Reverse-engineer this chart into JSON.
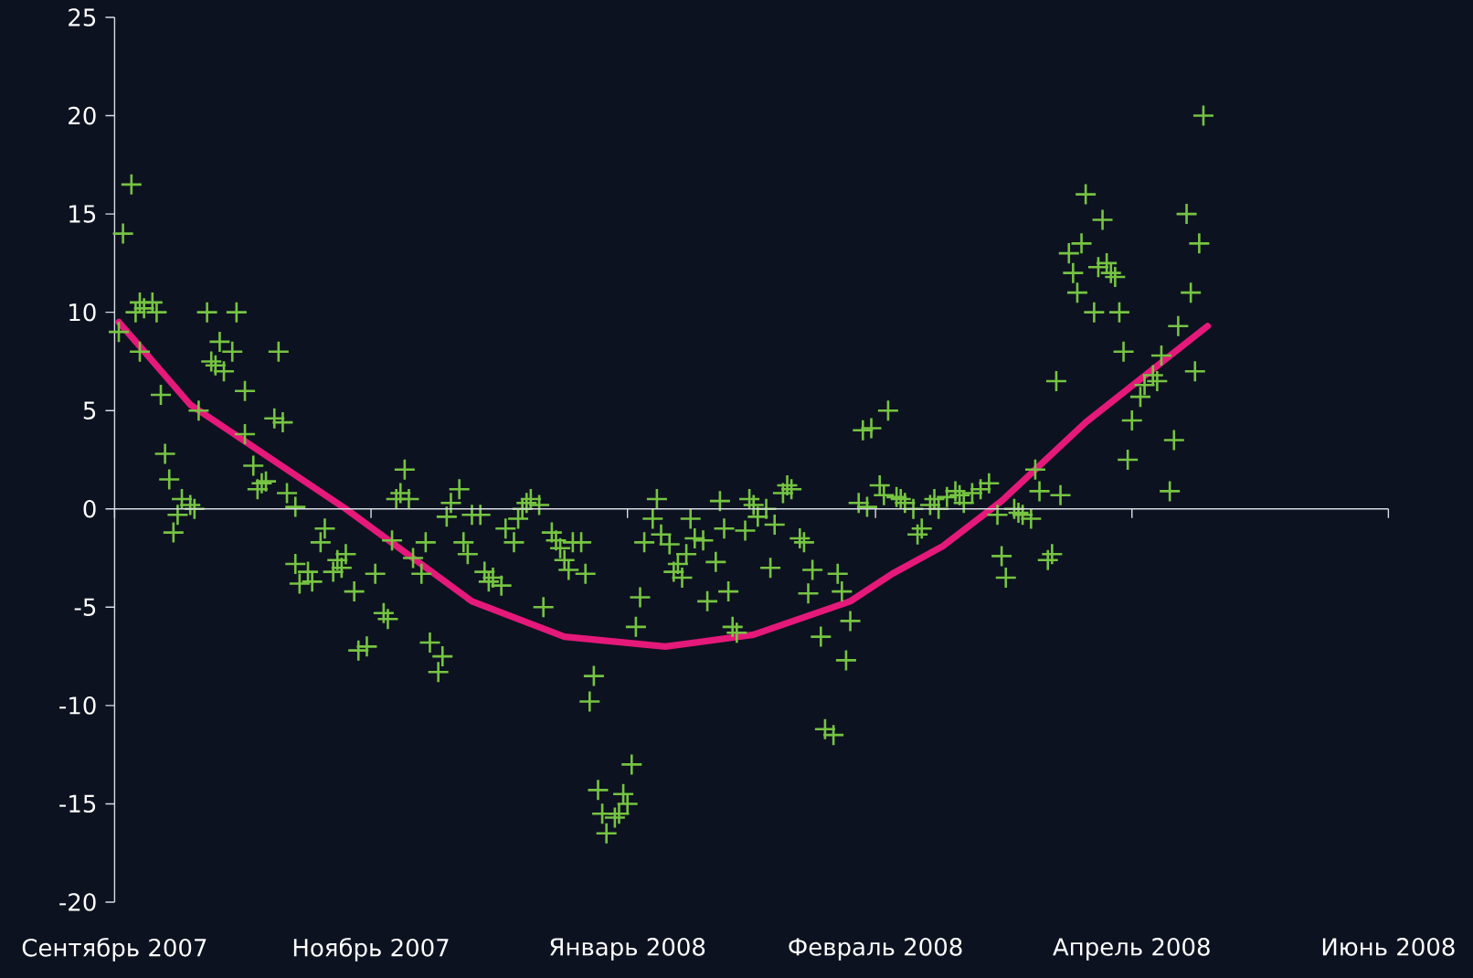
{
  "chart_data": {
    "type": "scatter",
    "marker": "cross",
    "xlim": [
      "2007-09-01",
      "2008-06-30"
    ],
    "ylim": [
      -20,
      25
    ],
    "xticks": [
      {
        "value": "2007-09-01",
        "label": "Сентябрь 2007"
      },
      {
        "value": "2007-11-01",
        "label": "Ноябрь 2007"
      },
      {
        "value": "2008-01-01",
        "label": "Январь 2008"
      },
      {
        "value": "2008-02-29",
        "label": "Февраль 2008"
      },
      {
        "value": "2008-04-30",
        "label": "Апрель 2008"
      },
      {
        "value": "2008-06-30",
        "label": "Июнь 2008"
      }
    ],
    "yticks": [
      -20,
      -15,
      -10,
      -5,
      0,
      5,
      10,
      15,
      20,
      25
    ],
    "series": [
      {
        "color": "#76c442",
        "x": [
          "2007-09-02",
          "2007-09-03",
          "2007-09-05",
          "2007-09-06",
          "2007-09-07",
          "2007-09-07",
          "2007-09-08",
          "2007-09-10",
          "2007-09-11",
          "2007-09-12",
          "2007-09-13",
          "2007-09-14",
          "2007-09-15",
          "2007-09-16",
          "2007-09-17",
          "2007-09-19",
          "2007-09-20",
          "2007-09-21",
          "2007-09-23",
          "2007-09-24",
          "2007-09-25",
          "2007-09-26",
          "2007-09-27",
          "2007-09-29",
          "2007-09-30",
          "2007-10-02",
          "2007-10-02",
          "2007-10-04",
          "2007-10-05",
          "2007-10-06",
          "2007-10-07",
          "2007-10-09",
          "2007-10-10",
          "2007-10-11",
          "2007-10-12",
          "2007-10-14",
          "2007-10-14",
          "2007-10-15",
          "2007-10-17",
          "2007-10-18",
          "2007-10-20",
          "2007-10-21",
          "2007-10-23",
          "2007-10-24",
          "2007-10-25",
          "2007-10-26",
          "2007-10-28",
          "2007-10-29",
          "2007-10-31",
          "2007-11-02",
          "2007-11-04",
          "2007-11-05",
          "2007-11-06",
          "2007-11-07",
          "2007-11-08",
          "2007-11-09",
          "2007-11-10",
          "2007-11-11",
          "2007-11-13",
          "2007-11-14",
          "2007-11-15",
          "2007-11-17",
          "2007-11-18",
          "2007-11-19",
          "2007-11-20",
          "2007-11-22",
          "2007-11-23",
          "2007-11-24",
          "2007-11-25",
          "2007-11-27",
          "2007-11-28",
          "2007-11-29",
          "2007-11-30",
          "2007-12-02",
          "2007-12-03",
          "2007-12-05",
          "2007-12-06",
          "2007-12-07",
          "2007-12-08",
          "2007-12-09",
          "2007-12-11",
          "2007-12-12",
          "2007-12-14",
          "2007-12-15",
          "2007-12-16",
          "2007-12-17",
          "2007-12-18",
          "2007-12-19",
          "2007-12-21",
          "2007-12-22",
          "2007-12-23",
          "2007-12-24",
          "2007-12-25",
          "2007-12-26",
          "2007-12-27",
          "2007-12-29",
          "2007-12-30",
          "2007-12-31",
          "2008-01-01",
          "2008-01-02",
          "2008-01-03",
          "2008-01-04",
          "2008-01-05",
          "2008-01-07",
          "2008-01-08",
          "2008-01-09",
          "2008-01-11",
          "2008-01-12",
          "2008-01-13",
          "2008-01-14",
          "2008-01-15",
          "2008-01-16",
          "2008-01-17",
          "2008-01-19",
          "2008-01-20",
          "2008-01-22",
          "2008-01-23",
          "2008-01-24",
          "2008-01-25",
          "2008-01-26",
          "2008-01-27",
          "2008-01-29",
          "2008-01-30",
          "2008-01-31",
          "2008-02-01",
          "2008-02-03",
          "2008-02-04",
          "2008-02-05",
          "2008-02-07",
          "2008-02-08",
          "2008-02-09",
          "2008-02-11",
          "2008-02-12",
          "2008-02-13",
          "2008-02-14",
          "2008-02-16",
          "2008-02-17",
          "2008-02-19",
          "2008-02-20",
          "2008-02-21",
          "2008-02-22",
          "2008-02-23",
          "2008-02-25",
          "2008-02-26",
          "2008-02-27",
          "2008-02-28",
          "2008-03-01",
          "2008-03-02",
          "2008-03-03",
          "2008-03-05",
          "2008-03-06",
          "2008-03-07",
          "2008-03-09",
          "2008-03-10",
          "2008-03-11",
          "2008-03-13",
          "2008-03-14",
          "2008-03-15",
          "2008-03-17",
          "2008-03-19",
          "2008-03-20",
          "2008-03-21",
          "2008-03-23",
          "2008-03-25",
          "2008-03-27",
          "2008-03-29",
          "2008-03-30",
          "2008-03-31",
          "2008-04-02",
          "2008-04-03",
          "2008-04-04",
          "2008-04-06",
          "2008-04-07",
          "2008-04-08",
          "2008-04-10",
          "2008-04-11",
          "2008-04-12",
          "2008-04-13",
          "2008-04-15",
          "2008-04-16",
          "2008-04-17",
          "2008-04-18",
          "2008-04-19",
          "2008-04-21",
          "2008-04-22",
          "2008-04-23",
          "2008-04-24",
          "2008-04-25",
          "2008-04-26",
          "2008-04-27",
          "2008-04-28",
          "2008-04-29",
          "2008-04-30",
          "2008-05-02",
          "2008-05-03",
          "2008-05-05",
          "2008-05-06",
          "2008-05-07",
          "2008-05-09",
          "2008-05-10",
          "2008-05-11",
          "2008-05-13",
          "2008-05-14",
          "2008-05-15",
          "2008-05-16",
          "2008-05-17"
        ],
        "values": [
          9,
          14,
          16.5,
          10,
          10.5,
          8,
          10.2,
          10.5,
          10,
          5.8,
          2.8,
          1.5,
          -1.2,
          -0.3,
          0.5,
          0.2,
          0,
          5,
          10,
          7.5,
          7.3,
          8.5,
          7,
          8,
          10,
          6,
          3.8,
          2.2,
          1,
          1.3,
          1.4,
          4.6,
          8,
          4.4,
          0.8,
          0.1,
          -2.8,
          -3.8,
          -3.2,
          -3.7,
          -1.7,
          -1,
          -3.2,
          -2.6,
          -3,
          -2.3,
          -4.2,
          -7.2,
          -7,
          -3.3,
          -5.3,
          -5.6,
          -1.6,
          0.5,
          0.8,
          2,
          0.5,
          -2.5,
          -3.3,
          -1.7,
          -6.8,
          -8.3,
          -7.5,
          -0.4,
          0.3,
          1,
          -1.7,
          -2.3,
          -0.3,
          -0.3,
          -3.2,
          -3.7,
          -3.5,
          -3.9,
          -1,
          -1.7,
          -0.5,
          0,
          0.3,
          0.5,
          0.2,
          -5,
          -1.2,
          -1.6,
          -2,
          -2.6,
          -3.1,
          -1.7,
          -1.7,
          -3.3,
          -9.8,
          -8.5,
          -14.3,
          -15.5,
          -16.5,
          -15.7,
          -15.5,
          -14.5,
          -15,
          -13,
          -6,
          -4.5,
          -1.7,
          -0.5,
          0.5,
          -1.3,
          -1.8,
          -3.2,
          -2.8,
          -3.5,
          -2.3,
          -0.5,
          -1.5,
          -1.6,
          -4.7,
          -2.7,
          0.4,
          -1,
          -4.2,
          -6,
          -6.3,
          -1.1,
          0.5,
          0.2,
          -0.4,
          0,
          -3,
          -0.8,
          0.8,
          1.2,
          1,
          -1.5,
          -1.7,
          -4.3,
          -3.1,
          -6.5,
          -11.2,
          -11.5,
          -3.3,
          -4.2,
          -7.7,
          -5.7,
          0.3,
          4,
          0.1,
          4.1,
          1.2,
          0.7,
          5,
          0.6,
          0.5,
          0.3,
          0,
          -1.3,
          -1,
          0.2,
          0.5,
          0,
          0.6,
          0.9,
          0.7,
          0.3,
          0.8,
          1,
          1.3,
          -0.3,
          -2.4,
          -3.5,
          0,
          -0.2,
          -0.3,
          -0.5,
          2,
          0.9,
          -2.6,
          -2.3,
          6.5,
          0.7,
          13,
          12,
          11,
          13.5,
          16,
          10,
          12.3,
          14.7,
          12.5,
          12,
          11.8,
          10,
          8,
          2.5,
          4.5,
          5.7,
          6.3,
          6.8,
          6.5,
          7.8,
          0.9,
          3.5,
          9.3,
          15,
          11,
          7,
          13.5,
          20
        ]
      },
      {
        "type": "line",
        "marker": "none",
        "color": "#e5197a",
        "x": [
          "2007-09-02",
          "2007-09-19",
          "2007-10-26",
          "2007-11-25",
          "2007-12-17",
          "2008-01-10",
          "2008-01-31",
          "2008-02-23",
          "2008-03-04",
          "2008-03-16",
          "2008-03-30",
          "2008-04-19",
          "2008-05-18"
        ],
        "values": [
          9.5,
          5.3,
          0,
          -4.7,
          -6.5,
          -7,
          -6.4,
          -4.7,
          -3.3,
          -1.9,
          0.4,
          4.4,
          9.3
        ]
      }
    ]
  }
}
